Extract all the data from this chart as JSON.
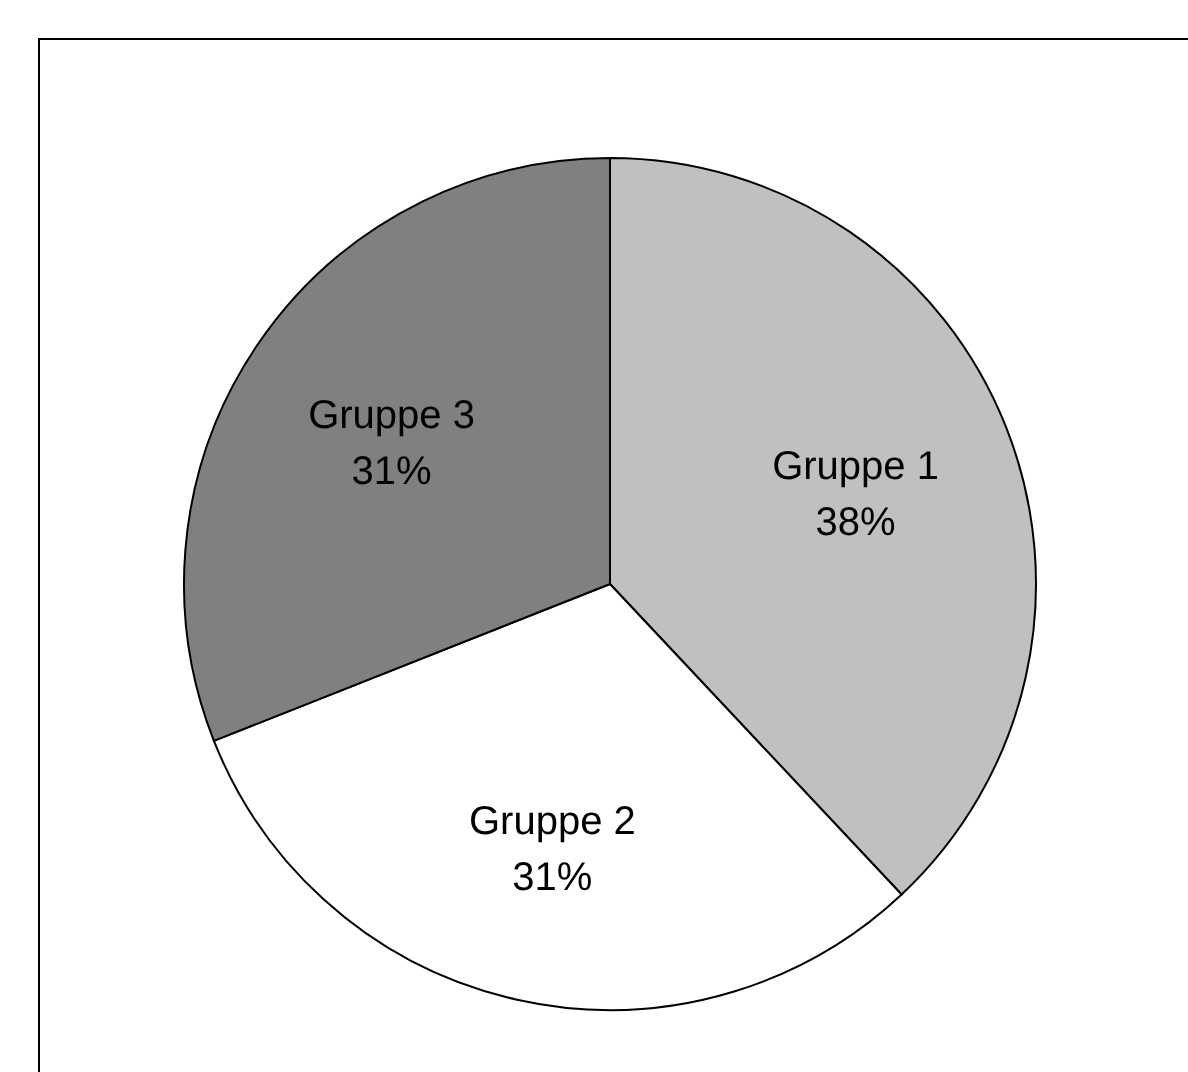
{
  "chart_data": {
    "type": "pie",
    "categories": [
      "Gruppe 1",
      "Gruppe 2",
      "Gruppe 3"
    ],
    "values": [
      38,
      31,
      31
    ],
    "colors": [
      "#c0c0c0",
      "#ffffff",
      "#808080"
    ],
    "value_labels": [
      "38%",
      "31%",
      "31%"
    ]
  }
}
